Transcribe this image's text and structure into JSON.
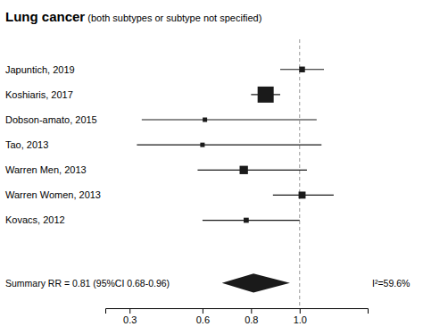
{
  "chart_data": {
    "type": "forest",
    "title": "Lung cancer",
    "subtitle": " (both subtypes or subtype not specified)",
    "categories": [
      "Japuntich, 2019",
      "Koshiaris, 2017",
      "Dobson-amato, 2015",
      "Tao, 2013",
      "Warren Men, 2013",
      "Warren Women, 2013",
      "Kovacs, 2012"
    ],
    "values": [
      1.01,
      0.86,
      0.61,
      0.6,
      0.77,
      1.01,
      0.78
    ],
    "ci_lo": [
      0.92,
      0.8,
      0.35,
      0.33,
      0.58,
      0.89,
      0.6
    ],
    "ci_hi": [
      1.1,
      0.92,
      1.07,
      1.09,
      1.03,
      1.14,
      1.0
    ],
    "weights": [
      0.06,
      0.22,
      0.04,
      0.04,
      0.1,
      0.08,
      0.05
    ],
    "summary": {
      "label": "Summary RR = 0.81 (95%CI 0.68-0.96)",
      "value": 0.81,
      "ci_lo": 0.68,
      "ci_hi": 0.96
    },
    "annotation": "I²=59.6%",
    "ref_line": 1.0,
    "xlim": [
      0.2,
      1.28
    ],
    "xticks": [
      0.3,
      0.6,
      0.8,
      {
        "value": 1.0,
        "label": "1.0"
      }
    ],
    "color": "#1a1a1a"
  }
}
